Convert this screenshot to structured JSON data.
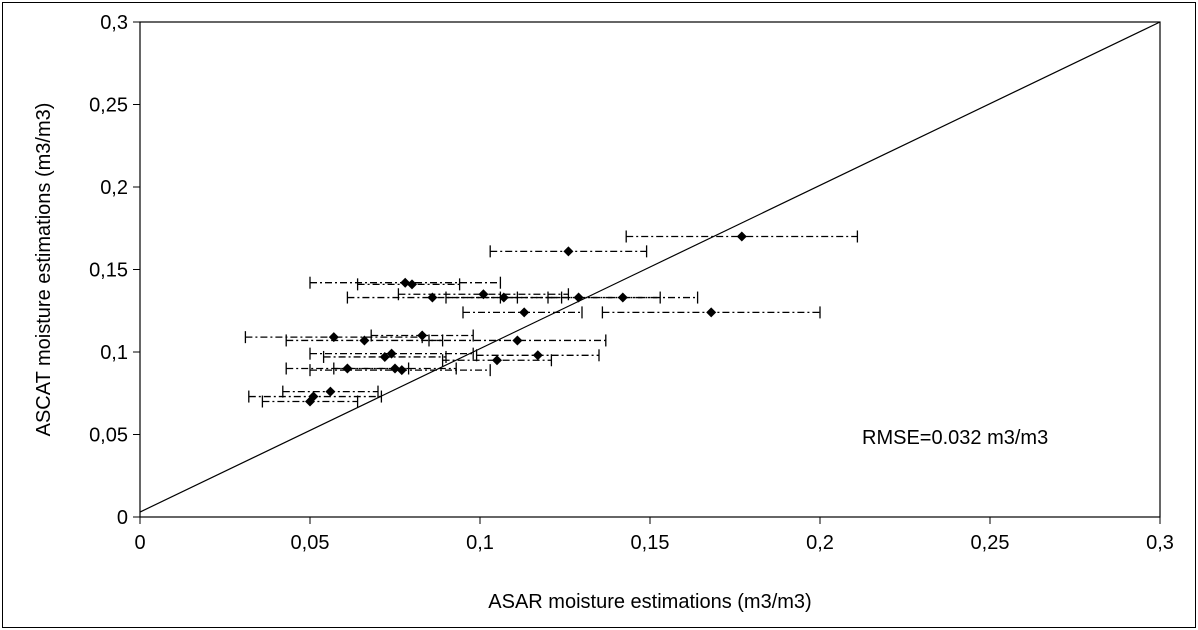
{
  "chart_data": {
    "type": "scatter",
    "title": "",
    "xlabel": "ASAR moisture estimations (m3/m3)",
    "ylabel": "ASCAT moisture estimations (m3/m3)",
    "xlim": [
      0,
      0.3
    ],
    "ylim": [
      0,
      0.3
    ],
    "x_ticks": [
      0,
      0.05,
      0.1,
      0.15,
      0.2,
      0.25,
      0.3
    ],
    "y_ticks": [
      0,
      0.05,
      0.1,
      0.15,
      0.2,
      0.25,
      0.3
    ],
    "x_tick_labels": [
      "0",
      "0,05",
      "0,1",
      "0,15",
      "0,2",
      "0,25",
      "0,3"
    ],
    "y_tick_labels": [
      "0",
      "0,05",
      "0,1",
      "0,15",
      "0,2",
      "0,25",
      "0,3"
    ],
    "grid": false,
    "legend": "none",
    "annotation": "RMSE=0.032 m3/m3",
    "reference_line": {
      "x": [
        0,
        0.3
      ],
      "y": [
        0.003,
        0.3
      ]
    },
    "points": [
      {
        "x": 0.177,
        "y": 0.17,
        "xerr": [
          0.143,
          0.211
        ]
      },
      {
        "x": 0.126,
        "y": 0.161,
        "xerr": [
          0.103,
          0.149
        ]
      },
      {
        "x": 0.078,
        "y": 0.142,
        "xerr": [
          0.05,
          0.106
        ]
      },
      {
        "x": 0.08,
        "y": 0.141,
        "xerr": [
          0.064,
          0.094
        ]
      },
      {
        "x": 0.086,
        "y": 0.133,
        "xerr": [
          0.061,
          0.111
        ]
      },
      {
        "x": 0.101,
        "y": 0.135,
        "xerr": [
          0.076,
          0.126
        ]
      },
      {
        "x": 0.107,
        "y": 0.133,
        "xerr": [
          0.09,
          0.124
        ]
      },
      {
        "x": 0.129,
        "y": 0.133,
        "xerr": [
          0.106,
          0.153
        ]
      },
      {
        "x": 0.142,
        "y": 0.133,
        "xerr": [
          0.12,
          0.164
        ]
      },
      {
        "x": 0.113,
        "y": 0.124,
        "xerr": [
          0.095,
          0.13
        ]
      },
      {
        "x": 0.168,
        "y": 0.124,
        "xerr": [
          0.136,
          0.2
        ]
      },
      {
        "x": 0.057,
        "y": 0.109,
        "xerr": [
          0.031,
          0.083
        ]
      },
      {
        "x": 0.083,
        "y": 0.11,
        "xerr": [
          0.068,
          0.098
        ]
      },
      {
        "x": 0.066,
        "y": 0.107,
        "xerr": [
          0.043,
          0.089
        ]
      },
      {
        "x": 0.111,
        "y": 0.107,
        "xerr": [
          0.085,
          0.137
        ]
      },
      {
        "x": 0.074,
        "y": 0.099,
        "xerr": [
          0.05,
          0.098
        ]
      },
      {
        "x": 0.072,
        "y": 0.097,
        "xerr": [
          0.054,
          0.09
        ]
      },
      {
        "x": 0.117,
        "y": 0.098,
        "xerr": [
          0.099,
          0.135
        ]
      },
      {
        "x": 0.105,
        "y": 0.095,
        "xerr": [
          0.089,
          0.121
        ]
      },
      {
        "x": 0.061,
        "y": 0.09,
        "xerr": [
          0.043,
          0.079
        ]
      },
      {
        "x": 0.075,
        "y": 0.09,
        "xerr": [
          0.057,
          0.093
        ]
      },
      {
        "x": 0.077,
        "y": 0.089,
        "xerr": [
          0.05,
          0.103
        ]
      },
      {
        "x": 0.056,
        "y": 0.076,
        "xerr": [
          0.042,
          0.07
        ]
      },
      {
        "x": 0.051,
        "y": 0.073,
        "xerr": [
          0.032,
          0.071
        ]
      },
      {
        "x": 0.05,
        "y": 0.07,
        "xerr": [
          0.036,
          0.064
        ]
      }
    ]
  }
}
